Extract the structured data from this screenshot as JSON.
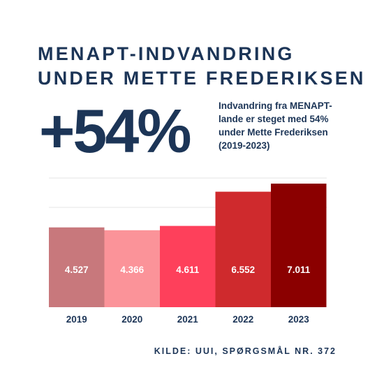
{
  "header": {
    "title_lines": [
      "MENAPT-INDVANDRING",
      "UNDER METTE FREDERIKSEN"
    ]
  },
  "highlight": {
    "value": "+54%",
    "description_lines": [
      "Indvandring fra MENAPT-",
      "lande er steget med 54%",
      "under Mette Frederiksen",
      "(2019-2023)"
    ]
  },
  "chart_data": {
    "type": "bar",
    "categories": [
      "2019",
      "2020",
      "2021",
      "2022",
      "2023"
    ],
    "values": [
      4527,
      4366,
      4611,
      6552,
      7011
    ],
    "value_labels": [
      "4.527",
      "4.366",
      "4.611",
      "6.552",
      "7.011"
    ],
    "bar_colors": [
      "#c8787c",
      "#fb9399",
      "#fe405b",
      "#cf2a2d",
      "#8b0000"
    ],
    "label_color": "#ffffff",
    "axis_label_color": "#1c3557",
    "gridline_color": "#e6e6e6",
    "grid": true,
    "title": "",
    "xlabel": "",
    "ylabel": ""
  },
  "footer": {
    "source": "KILDE: UUI, SPØRGSMÅL NR. 372"
  }
}
